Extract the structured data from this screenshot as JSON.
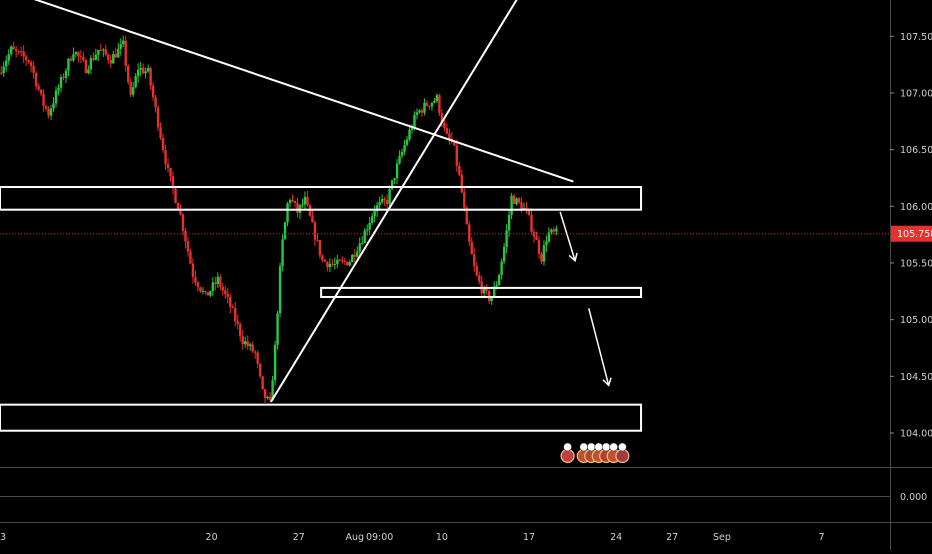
{
  "chart_data": {
    "type": "candlestick",
    "symbol_price_label": "105.758",
    "y_ticks": [
      "107.500",
      "107.000",
      "106.500",
      "106.000",
      "105.500",
      "105.000",
      "104.500",
      "104.000"
    ],
    "y_range": [
      103.7,
      107.82
    ],
    "sub_indicator_tick": "0.000",
    "x_ticks": [
      {
        "label": "3",
        "day": 0
      },
      {
        "label": "20",
        "day": 17
      },
      {
        "label": "27",
        "day": 24
      },
      {
        "label": "Aug",
        "day": 28.5
      },
      {
        "label": "09:00",
        "day": 30.5
      },
      {
        "label": "10",
        "day": 35.5
      },
      {
        "label": "17",
        "day": 42.5
      },
      {
        "label": "24",
        "day": 49.5
      },
      {
        "label": "27",
        "day": 54
      },
      {
        "label": "Sep",
        "day": 58
      },
      {
        "label": "7",
        "day": 66
      }
    ],
    "x_range_days": [
      0,
      71.5
    ],
    "grid": false,
    "current_price": 105.758,
    "colors": {
      "up": "#26c840",
      "down": "#e8302c",
      "price_line": "#c8302c",
      "price_tag": "#e8302c",
      "drawings": "#ffffff",
      "axis_text": "#d0d0d0"
    },
    "price_waypoints": [
      [
        0.0,
        107.18
      ],
      [
        1.0,
        107.38
      ],
      [
        2.5,
        107.28
      ],
      [
        3.5,
        106.92
      ],
      [
        4.0,
        106.82
      ],
      [
        5.0,
        107.1
      ],
      [
        6.0,
        107.38
      ],
      [
        7.0,
        107.22
      ],
      [
        8.0,
        107.38
      ],
      [
        9.0,
        107.3
      ],
      [
        10.0,
        107.42
      ],
      [
        10.6,
        106.95
      ],
      [
        11.2,
        107.22
      ],
      [
        12.0,
        107.18
      ],
      [
        12.6,
        106.85
      ],
      [
        13.6,
        106.3
      ],
      [
        14.6,
        105.92
      ],
      [
        15.6,
        105.4
      ],
      [
        16.6,
        105.2
      ],
      [
        17.6,
        105.35
      ],
      [
        18.6,
        105.12
      ],
      [
        19.6,
        104.82
      ],
      [
        20.6,
        104.7
      ],
      [
        21.2,
        104.35
      ],
      [
        21.8,
        104.25
      ],
      [
        22.2,
        104.75
      ],
      [
        22.7,
        105.6
      ],
      [
        23.3,
        106.1
      ],
      [
        24.0,
        105.95
      ],
      [
        24.6,
        106.05
      ],
      [
        25.3,
        105.78
      ],
      [
        26.0,
        105.52
      ],
      [
        27.0,
        105.48
      ],
      [
        28.2,
        105.52
      ],
      [
        29.2,
        105.72
      ],
      [
        30.2,
        105.98
      ],
      [
        31.2,
        106.05
      ],
      [
        32.0,
        106.35
      ],
      [
        32.8,
        106.6
      ],
      [
        33.6,
        106.82
      ],
      [
        34.4,
        106.9
      ],
      [
        35.2,
        106.95
      ],
      [
        35.9,
        106.62
      ],
      [
        36.5,
        106.55
      ],
      [
        37.1,
        106.2
      ],
      [
        37.7,
        105.72
      ],
      [
        38.3,
        105.4
      ],
      [
        38.9,
        105.25
      ],
      [
        39.5,
        105.18
      ],
      [
        40.1,
        105.35
      ],
      [
        40.7,
        105.7
      ],
      [
        41.2,
        106.08
      ],
      [
        41.8,
        106.02
      ],
      [
        42.4,
        105.95
      ],
      [
        43.0,
        105.75
      ],
      [
        43.6,
        105.55
      ],
      [
        44.1,
        105.76
      ],
      [
        44.6,
        105.76
      ]
    ],
    "drawings": {
      "descending_trendline": [
        [
          0.0,
          107.93
        ],
        [
          46.0,
          106.22
        ]
      ],
      "ascending_trendline": [
        [
          21.8,
          104.28
        ],
        [
          45.0,
          108.45
        ]
      ],
      "resistance_box": {
        "day_start": 0.0,
        "day_end": 51.5,
        "price_top": 106.17,
        "price_bottom": 105.97
      },
      "support_box": {
        "day_start": 25.8,
        "day_end": 51.5,
        "price_top": 105.28,
        "price_bottom": 105.2
      },
      "target_box": {
        "day_start": 0.0,
        "day_end": 51.5,
        "price_top": 104.25,
        "price_bottom": 104.02
      },
      "arrows": [
        [
          [
            45.0,
            105.95
          ],
          [
            46.2,
            105.52
          ]
        ],
        [
          [
            47.3,
            105.1
          ],
          [
            48.9,
            104.42
          ]
        ]
      ]
    }
  }
}
